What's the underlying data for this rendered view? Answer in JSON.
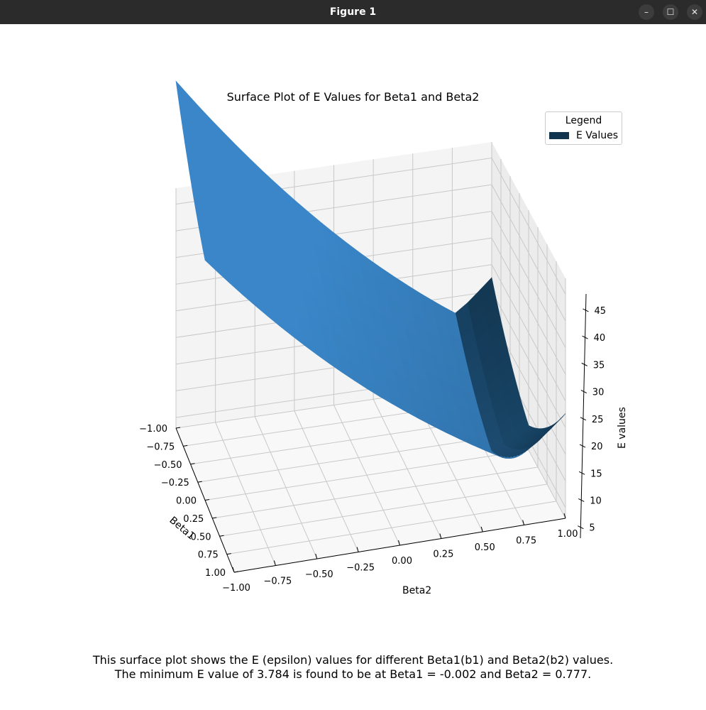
{
  "window": {
    "title": "Figure 1",
    "minimize_glyph": "–",
    "maximize_glyph": "☐",
    "close_glyph": "✕"
  },
  "caption": {
    "line1": "This surface plot shows the E (epsilon) values for different Beta1(b1) and Beta2(b2) values.",
    "line2": "The minimum E value of 3.784 is found to be at Beta1 = -0.002 and Beta2 = 0.777."
  },
  "chart_data": {
    "type": "surface",
    "title": "Surface Plot of E Values for Beta1 and Beta2",
    "xlabel": "Beta1",
    "ylabel": "Beta2",
    "zlabel": "E values",
    "x_ticks": [
      "−1.00",
      "−0.75",
      "−0.50",
      "−0.25",
      "0.00",
      "0.25",
      "0.50",
      "0.75",
      "1.00"
    ],
    "y_ticks": [
      "−1.00",
      "−0.75",
      "−0.50",
      "−0.25",
      "0.00",
      "0.25",
      "0.50",
      "0.75",
      "1.00"
    ],
    "z_ticks": [
      "5",
      "10",
      "15",
      "20",
      "25",
      "30",
      "35",
      "40",
      "45"
    ],
    "xlim": [
      -1,
      1
    ],
    "ylim": [
      -1,
      1
    ],
    "zlim": [
      3,
      48
    ],
    "grid": true,
    "legend": {
      "title": "Legend",
      "placement": "top-right",
      "entries": [
        {
          "name": "E Values",
          "color": "#11354f"
        }
      ]
    },
    "surface_color": "#3a86c8",
    "minimum": {
      "e": 3.784,
      "beta1": -0.002,
      "beta2": 0.777
    }
  }
}
